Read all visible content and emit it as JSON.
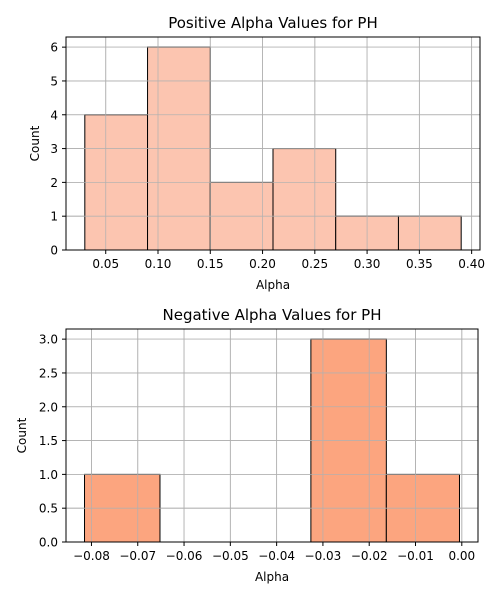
{
  "chart_data": [
    {
      "type": "bar",
      "histogram": true,
      "title": "Positive Alpha Values for PH",
      "xlabel": "Alpha",
      "ylabel": "Count",
      "bin_edges": [
        0.03,
        0.09,
        0.15,
        0.21,
        0.27,
        0.33,
        0.39
      ],
      "values": [
        4,
        6,
        2,
        3,
        1,
        1
      ],
      "xlim": [
        0.012,
        0.408
      ],
      "ylim": [
        0,
        6.3
      ],
      "xticks": [
        0.05,
        0.1,
        0.15,
        0.2,
        0.25,
        0.3,
        0.35,
        0.4
      ],
      "xtick_labels": [
        "0.05",
        "0.10",
        "0.15",
        "0.20",
        "0.25",
        "0.30",
        "0.35",
        "0.40"
      ],
      "yticks": [
        0,
        1,
        2,
        3,
        4,
        5,
        6
      ],
      "ytick_labels": [
        "0",
        "1",
        "2",
        "3",
        "4",
        "5",
        "6"
      ],
      "grid": true,
      "bar_color": "#fcc5b0",
      "edge_color": "#000000",
      "grid_color": "#b0b0b0"
    },
    {
      "type": "bar",
      "histogram": true,
      "title": "Negative Alpha Values for PH",
      "xlabel": "Alpha",
      "ylabel": "Count",
      "bin_edges": [
        -0.0815,
        -0.0652,
        -0.0489,
        -0.0326,
        -0.0163,
        -0.0005
      ],
      "values": [
        1,
        0,
        0,
        3,
        1
      ],
      "xlim": [
        -0.0855,
        0.0035
      ],
      "ylim": [
        0,
        3.15
      ],
      "xticks": [
        -0.08,
        -0.07,
        -0.06,
        -0.05,
        -0.04,
        -0.03,
        -0.02,
        -0.01,
        0.0
      ],
      "xtick_labels": [
        "−0.08",
        "−0.07",
        "−0.06",
        "−0.05",
        "−0.04",
        "−0.03",
        "−0.02",
        "−0.01",
        "0.00"
      ],
      "yticks": [
        0,
        0.5,
        1.0,
        1.5,
        2.0,
        2.5,
        3.0
      ],
      "ytick_labels": [
        "0.0",
        "0.5",
        "1.0",
        "1.5",
        "2.0",
        "2.5",
        "3.0"
      ],
      "grid": true,
      "bar_color": "#fca57f",
      "edge_color": "#000000",
      "grid_color": "#b0b0b0"
    }
  ]
}
